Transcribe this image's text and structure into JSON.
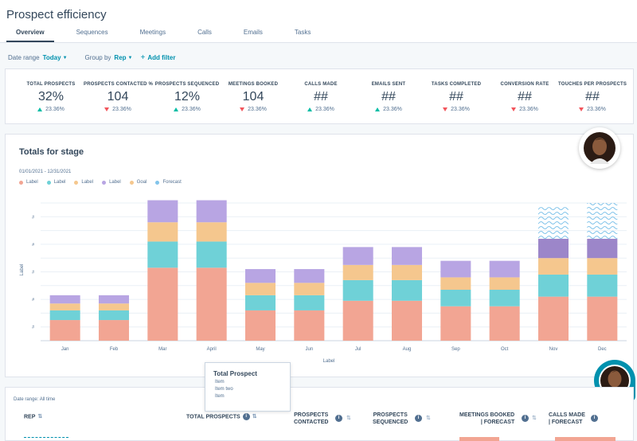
{
  "header": {
    "title": "Prospect efficiency",
    "tabs": [
      "Overview",
      "Sequences",
      "Meetings",
      "Calls",
      "Emails",
      "Tasks"
    ]
  },
  "filters": {
    "date_range_label": "Date range",
    "date_range_value": "Today",
    "group_by_label": "Group by",
    "group_by_value": "Rep",
    "add_filter": "Add filter"
  },
  "kpis": [
    {
      "label": "TOTAL PROSPECTS",
      "value": "32%",
      "change": "23.36%",
      "direction": "up"
    },
    {
      "label": "PROSPECTS CONTACTED %",
      "value": "104",
      "change": "23.36%",
      "direction": "down"
    },
    {
      "label": "PROSPECTS SEQUENCED",
      "value": "12%",
      "change": "23.36%",
      "direction": "up"
    },
    {
      "label": "MEETINGS BOOKED",
      "value": "104",
      "change": "23.36%",
      "direction": "down"
    },
    {
      "label": "CALLS MADE",
      "value": "##",
      "change": "23.36%",
      "direction": "up"
    },
    {
      "label": "EMAILS SENT",
      "value": "##",
      "change": "23.36%",
      "direction": "up"
    },
    {
      "label": "TASKS COMPLETED",
      "value": "##",
      "change": "23.36%",
      "direction": "down"
    },
    {
      "label": "CONVERSION RATE",
      "value": "##",
      "change": "23.36%",
      "direction": "down"
    },
    {
      "label": "TOUCHES PER PROSPECTS",
      "value": "##",
      "change": "23.36%",
      "direction": "down"
    }
  ],
  "chart": {
    "title": "Totals for stage",
    "date_range": "01/01/2021 - 12/31/2021"
  },
  "chart_data": {
    "type": "bar",
    "stacked": true,
    "categories": [
      "Jan",
      "Feb",
      "Mar",
      "April",
      "May",
      "Jun",
      "Jul",
      "Aug",
      "Sep",
      "Oct",
      "Nov",
      "Dec"
    ],
    "xlabel": "Label",
    "ylabel": "Label",
    "ytick_labels": [
      "#",
      "#",
      "#",
      "#",
      "#",
      "#",
      "#",
      "#",
      "#",
      "#"
    ],
    "ylim": [
      0,
      10
    ],
    "legend": [
      {
        "name": "Label",
        "color": "#f2a593"
      },
      {
        "name": "Label",
        "color": "#6fd1d7"
      },
      {
        "name": "Label",
        "color": "#f5c78e"
      },
      {
        "name": "Label",
        "color": "#b8a5e3"
      },
      {
        "name": "Goal",
        "color": "#f5c78e"
      },
      {
        "name": "Forecast",
        "color": "#82c4ea"
      }
    ],
    "series": [
      {
        "name": "Label",
        "color": "#f2a593",
        "values": [
          1.5,
          1.5,
          5.3,
          5.3,
          2.2,
          2.2,
          2.9,
          2.9,
          2.5,
          2.5,
          3.2,
          3.2
        ]
      },
      {
        "name": "Label",
        "color": "#6fd1d7",
        "values": [
          0.7,
          0.7,
          1.9,
          1.9,
          1.1,
          1.1,
          1.5,
          1.5,
          1.2,
          1.2,
          1.6,
          1.6
        ]
      },
      {
        "name": "Label",
        "color": "#f5c78e",
        "values": [
          0.5,
          0.5,
          1.4,
          1.4,
          0.9,
          0.9,
          1.1,
          1.1,
          0.9,
          0.9,
          1.2,
          1.2
        ]
      },
      {
        "name": "Label",
        "color": "#b8a5e3",
        "values": [
          0.6,
          0.6,
          1.6,
          1.6,
          1.0,
          1.0,
          1.3,
          1.3,
          1.2,
          1.2,
          1.4,
          1.4
        ]
      },
      {
        "name": "Forecast",
        "color": "#82c4ea",
        "values": [
          0,
          0,
          0,
          0,
          0,
          0,
          0,
          0,
          0,
          0,
          2.3,
          2.6
        ]
      }
    ]
  },
  "tooltip": {
    "title": "Total Prospect",
    "items": [
      "Item",
      "Item two",
      "Item"
    ]
  },
  "table": {
    "date_range": "Date range: All time",
    "columns": [
      {
        "line1": "REP",
        "line2": ""
      },
      {
        "line1": "TOTAL PROSPECTS",
        "line2": ""
      },
      {
        "line1": "PROSPECTS",
        "line2": "CONTACTED"
      },
      {
        "line1": "PROSPECTS",
        "line2": "SEQUENCED"
      },
      {
        "line1": "MEETINGS BOOKED",
        "line2": "| FORECAST"
      },
      {
        "line1": "CALLS MADE",
        "line2": "| FORECAST"
      }
    ]
  }
}
